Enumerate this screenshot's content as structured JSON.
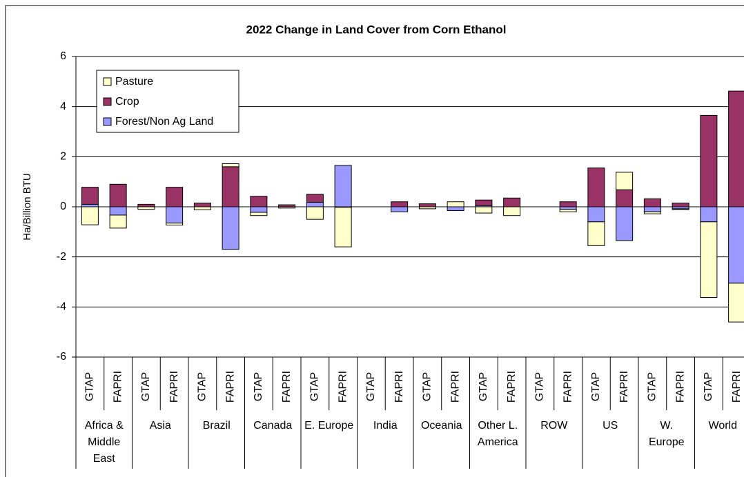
{
  "chart_data": {
    "type": "stacked-bar",
    "title": "2022 Change in Land Cover from Corn Ethanol",
    "y_label": "Ha/Billion BTU",
    "categories": [
      "GTAP",
      "FAPRI",
      "GTAP",
      "FAPRI",
      "GTAP",
      "FAPRI",
      "GTAP",
      "FAPRI",
      "GTAP",
      "FAPRI",
      "GTAP",
      "FAPRI",
      "GTAP",
      "FAPRI",
      "GTAP",
      "FAPRI",
      "GTAP",
      "FAPRI",
      "GTAP",
      "FAPRI",
      "GTAP",
      "FAPRI",
      "GTAP",
      "FAPRI"
    ],
    "groups": [
      "Africa & Middle East",
      "Asia",
      "Brazil",
      "Canada",
      "E. Europe",
      "India",
      "Oceania",
      "Other L. America",
      "ROW",
      "US",
      "W. Europe",
      "World"
    ],
    "series": [
      {
        "name": "Forest/Non Ag Land",
        "color": "#9999ff",
        "values": [
          0.1,
          -0.33,
          0,
          -0.65,
          0,
          -1.7,
          -0.22,
          0,
          0.18,
          1.65,
          0,
          -0.2,
          0,
          -0.15,
          0.05,
          0,
          0,
          -0.1,
          -0.6,
          -1.35,
          -0.2,
          -0.08,
          -0.6,
          -3.05
        ]
      },
      {
        "name": "Crop",
        "color": "#993366",
        "values": [
          0.68,
          0.9,
          0.1,
          0.78,
          0.15,
          1.6,
          0.42,
          0.08,
          0.32,
          -0.02,
          0,
          0.2,
          0.12,
          0,
          0.22,
          0.35,
          0,
          0.2,
          1.55,
          0.68,
          0.32,
          0.15,
          3.65,
          4.62
        ]
      },
      {
        "name": "Pasture",
        "color": "#ffffcc",
        "values": [
          -0.72,
          -0.52,
          -0.1,
          -0.08,
          -0.12,
          0.12,
          -0.13,
          -0.05,
          -0.5,
          -1.58,
          0,
          0,
          -0.08,
          0.2,
          -0.25,
          -0.35,
          0,
          -0.1,
          -0.95,
          0.7,
          -0.08,
          -0.03,
          -3.02,
          -1.55
        ]
      }
    ],
    "ylim": [
      -6,
      6
    ],
    "yticks": [
      -6,
      -4,
      -2,
      0,
      2,
      4,
      6
    ],
    "grid": true,
    "legend": "top-left"
  }
}
